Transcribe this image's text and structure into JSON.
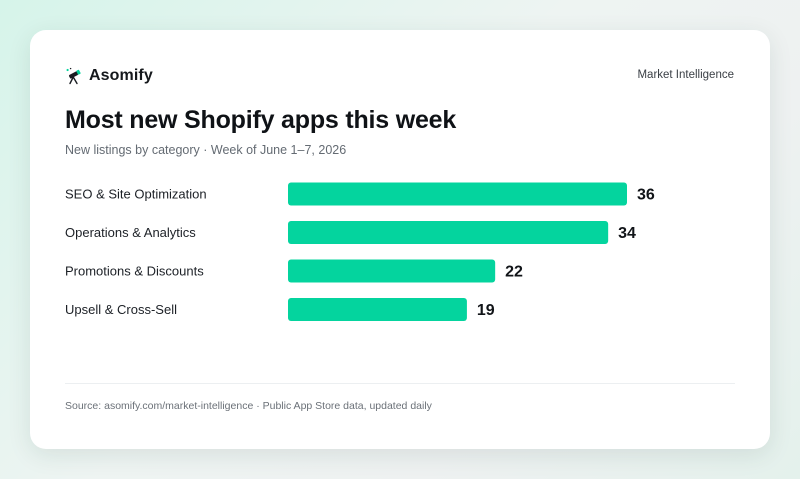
{
  "brand": {
    "name": "Asomify",
    "icon": "telescope-icon"
  },
  "header": {
    "right_label": "Market Intelligence"
  },
  "title": "Most new Shopify apps this week",
  "subtitle": "New listings by category · Week of June 1–7, 2026",
  "footer": "Source: asomify.com/market-intelligence · Public App Store data, updated daily",
  "colors": {
    "bar": "#04d49e",
    "accent": "#04d49e"
  },
  "chart_data": {
    "type": "bar",
    "orientation": "horizontal",
    "title": "Most new Shopify apps this week",
    "subtitle": "New listings by category · Week of June 1–7, 2026",
    "categories": [
      "SEO & Site Optimization",
      "Operations & Analytics",
      "Promotions & Discounts",
      "Upsell & Cross-Sell"
    ],
    "values": [
      36,
      34,
      22,
      19
    ],
    "xlim": [
      0,
      36
    ],
    "grid": false,
    "legend": "none",
    "data_labels": true
  }
}
